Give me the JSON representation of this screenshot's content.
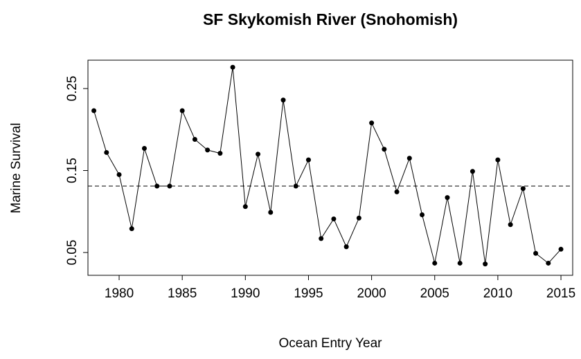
{
  "chart_data": {
    "type": "line",
    "title": "SF Skykomish River (Snohomish)",
    "x_label": "Ocean Entry Year",
    "y_label": "Marine Survival",
    "x": [
      1978,
      1979,
      1980,
      1981,
      1982,
      1983,
      1984,
      1985,
      1986,
      1987,
      1988,
      1989,
      1990,
      1991,
      1992,
      1993,
      1994,
      1995,
      1996,
      1997,
      1998,
      1999,
      2000,
      2001,
      2002,
      2003,
      2004,
      2005,
      2006,
      2007,
      2008,
      2009,
      2010,
      2011,
      2012,
      2013,
      2014,
      2015
    ],
    "values": [
      0.223,
      0.172,
      0.145,
      0.079,
      0.177,
      0.131,
      0.131,
      0.223,
      0.188,
      0.175,
      0.171,
      0.276,
      0.106,
      0.17,
      0.099,
      0.236,
      0.131,
      0.163,
      0.067,
      0.091,
      0.057,
      0.092,
      0.208,
      0.176,
      0.124,
      0.165,
      0.096,
      0.037,
      0.117,
      0.037,
      0.149,
      0.036,
      0.163,
      0.084,
      0.128,
      0.049,
      0.037,
      0.054
    ],
    "color": "#000000",
    "hline": 0.131,
    "xlim": [
      1977.53,
      2015.93
    ],
    "ylim": [
      0.0222,
      0.2846
    ],
    "xticks": [
      1980,
      1985,
      1990,
      1995,
      2000,
      2005,
      2010,
      2015
    ],
    "yticks": [
      0.05,
      0.15,
      0.25
    ]
  }
}
